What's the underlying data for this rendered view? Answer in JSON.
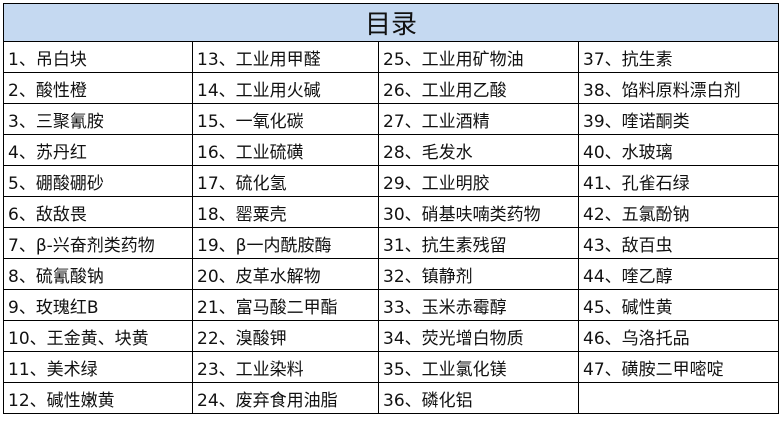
{
  "title": "目录",
  "header_bg": "#c5d9f1",
  "columns": [
    [
      "1、吊白块",
      "2、酸性橙",
      "3、三聚氰胺",
      "4、苏丹红",
      "5、硼酸硼砂",
      "6、敌敌畏",
      "7、β-兴奋剂类药物",
      "8、硫氰酸钠",
      "9、玫瑰红B",
      "10、王金黄、块黄",
      "11、美术绿",
      "12、碱性嫩黄"
    ],
    [
      "13、工业用甲醛",
      "14、工业用火碱",
      "15、一氧化碳",
      "16、工业硫磺",
      "17、硫化氢",
      "18、罂粟壳",
      "19、β一内酰胺酶",
      "20、皮革水解物",
      "21、富马酸二甲酯",
      "22、溴酸钾",
      "23、工业染料",
      "24、废弃食用油脂"
    ],
    [
      "25、工业用矿物油",
      "26、工业用乙酸",
      "27、工业酒精",
      "28、毛发水",
      "29、工业明胶",
      "30、硝基呋喃类药物",
      "31、抗生素残留",
      "32、镇静剂",
      "33、玉米赤霉醇",
      "34、荧光增白物质",
      "35、工业氯化镁",
      "36、磷化铝"
    ],
    [
      "37、抗生素",
      "38、馅料原料漂白剂",
      "39、喹诺酮类",
      "40、水玻璃",
      "41、孔雀石绿",
      "42、五氯酚钠",
      "43、敌百虫",
      "44、喹乙醇",
      "45、碱性黄",
      "46、乌洛托品",
      "47、磺胺二甲嘧啶",
      ""
    ]
  ]
}
